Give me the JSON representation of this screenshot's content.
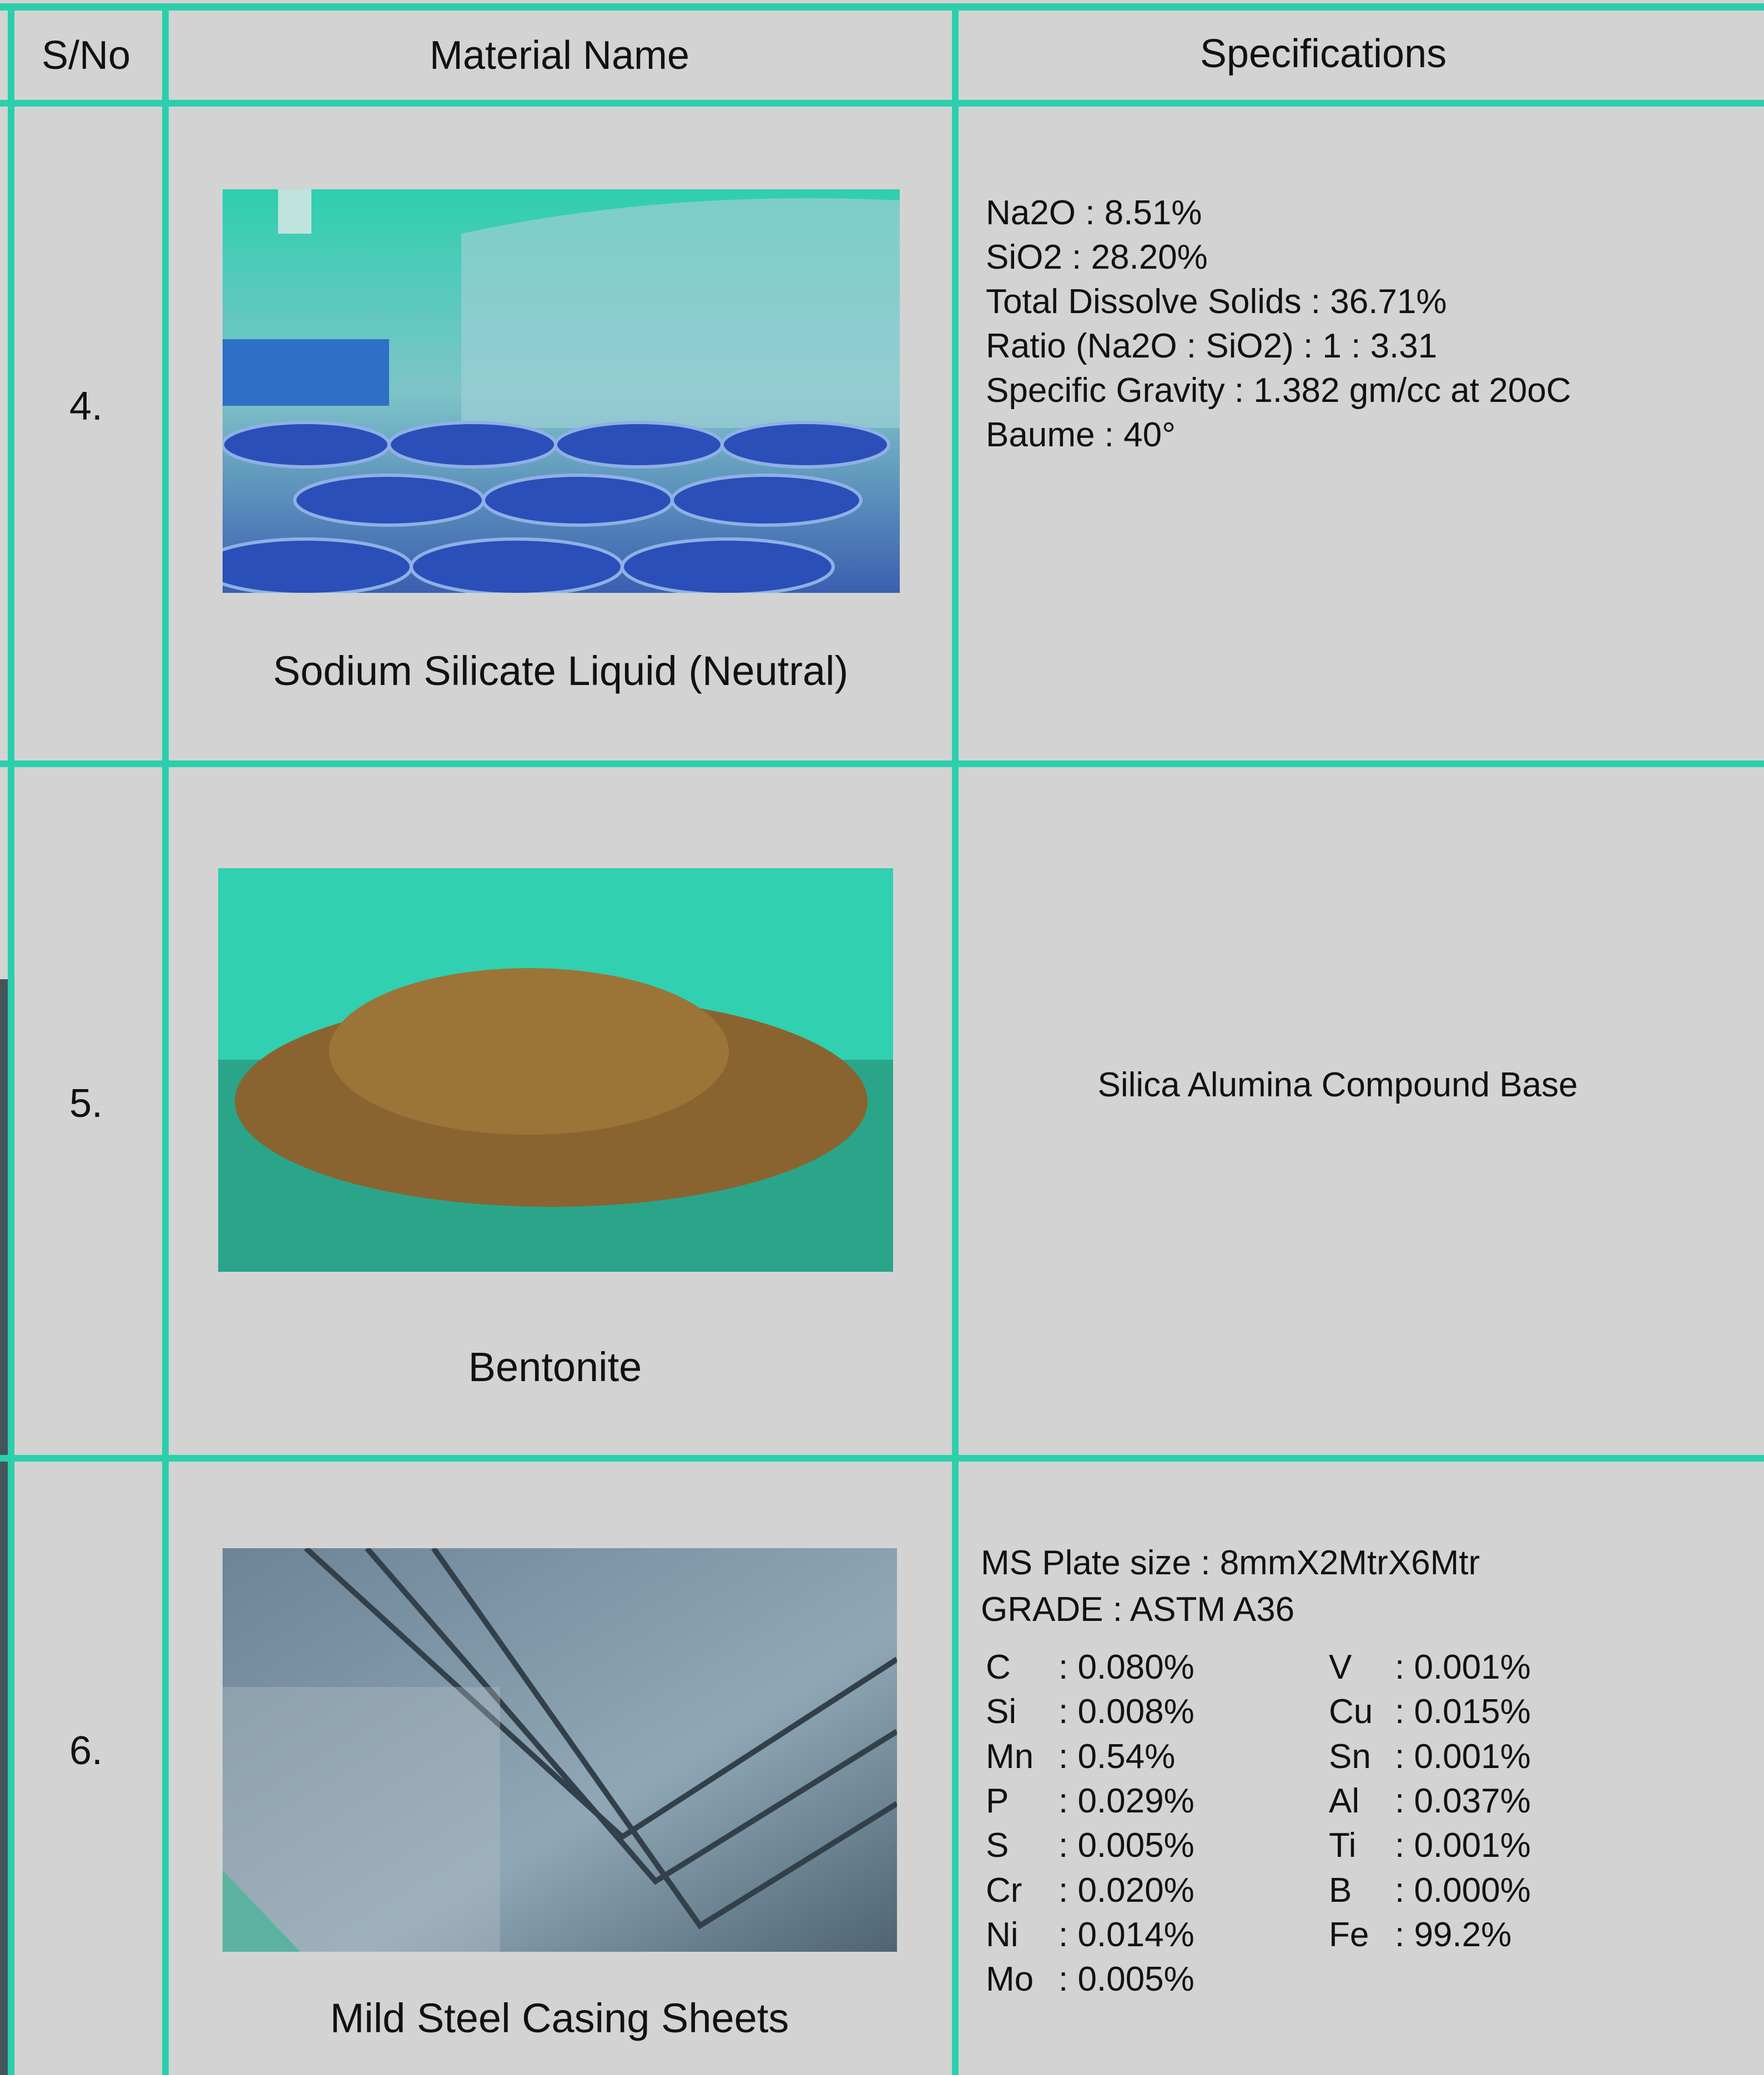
{
  "header": {
    "sno": "S/No",
    "material": "Material Name",
    "specs": "Specifications"
  },
  "rows": [
    {
      "sno": "4.",
      "name": "Sodium Silicate Liquid (Neutral)",
      "specs": [
        "Na2O : 8.51%",
        "SiO2 : 28.20%",
        "Total Dissolve Solids : 36.71%",
        "Ratio (Na2O : SiO2) : 1 : 3.31",
        "Specific Gravity :  1.382 gm/cc at 20oC",
        "Baume : 40°"
      ]
    },
    {
      "sno": "5.",
      "name": "Bentonite",
      "spec": "Silica Alumina Compound Base"
    },
    {
      "sno": "6.",
      "name": "Mild Steel Casing Sheets",
      "specs": [
        "MS Plate size : 8mmX2MtrX6Mtr",
        "GRADE : ASTM A36"
      ],
      "composition_left": [
        {
          "element": "C",
          "value": ": 0.080%"
        },
        {
          "element": "Si",
          "value": ": 0.008%"
        },
        {
          "element": "Mn",
          "value": ": 0.54%"
        },
        {
          "element": "P",
          "value": ": 0.029%"
        },
        {
          "element": "S",
          "value": ": 0.005%"
        },
        {
          "element": "Cr",
          "value": ": 0.020%"
        },
        {
          "element": "Ni",
          "value": ": 0.014%"
        },
        {
          "element": "Mo",
          "value": ": 0.005%"
        }
      ],
      "composition_right": [
        {
          "element": "V",
          "value": ": 0.001%"
        },
        {
          "element": "Cu",
          "value": ": 0.015%"
        },
        {
          "element": "Sn",
          "value": ": 0.001%"
        },
        {
          "element": "Al",
          "value": ": 0.037%"
        },
        {
          "element": "Ti",
          "value": ": 0.001%"
        },
        {
          "element": "B",
          "value": ": 0.000%"
        },
        {
          "element": "Fe",
          "value": ": 99.2%"
        }
      ]
    }
  ]
}
